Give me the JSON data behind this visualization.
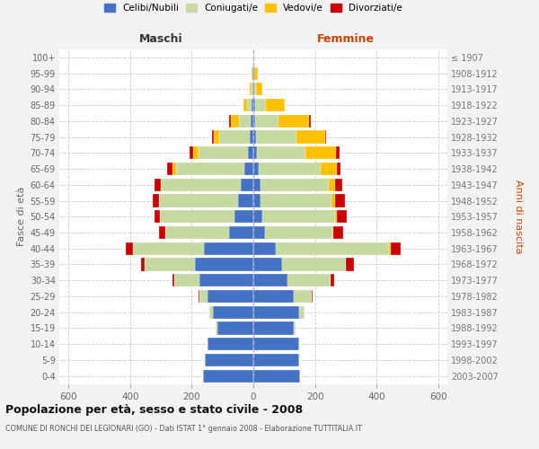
{
  "age_groups": [
    "0-4",
    "5-9",
    "10-14",
    "15-19",
    "20-24",
    "25-29",
    "30-34",
    "35-39",
    "40-44",
    "45-49",
    "50-54",
    "55-59",
    "60-64",
    "65-69",
    "70-74",
    "75-79",
    "80-84",
    "85-89",
    "90-94",
    "95-99",
    "100+"
  ],
  "birth_years": [
    "2003-2007",
    "1998-2002",
    "1993-1997",
    "1988-1992",
    "1983-1987",
    "1978-1982",
    "1973-1977",
    "1968-1972",
    "1963-1967",
    "1958-1962",
    "1953-1957",
    "1948-1952",
    "1943-1947",
    "1938-1942",
    "1933-1937",
    "1928-1932",
    "1923-1927",
    "1918-1922",
    "1913-1917",
    "1908-1912",
    "≤ 1907"
  ],
  "colors": {
    "celibe": "#4472c4",
    "coniugato": "#c5d9a0",
    "vedovo": "#ffc000",
    "divorziato": "#cc0000"
  },
  "maschi": {
    "celibe": [
      162,
      158,
      148,
      118,
      132,
      148,
      175,
      190,
      160,
      80,
      60,
      50,
      42,
      30,
      18,
      12,
      8,
      5,
      3,
      2,
      1
    ],
    "coniugato": [
      0,
      0,
      0,
      5,
      12,
      28,
      82,
      162,
      232,
      205,
      242,
      255,
      258,
      222,
      160,
      98,
      38,
      15,
      3,
      1,
      0
    ],
    "vedovo": [
      0,
      0,
      0,
      0,
      0,
      0,
      0,
      0,
      0,
      0,
      0,
      0,
      0,
      10,
      18,
      18,
      28,
      12,
      6,
      2,
      0
    ],
    "divorziato": [
      0,
      0,
      0,
      0,
      0,
      2,
      6,
      12,
      22,
      22,
      18,
      22,
      22,
      18,
      10,
      5,
      5,
      0,
      0,
      0,
      0
    ]
  },
  "femmine": {
    "celibe": [
      152,
      148,
      148,
      132,
      148,
      132,
      112,
      92,
      72,
      38,
      28,
      22,
      22,
      18,
      12,
      8,
      5,
      5,
      3,
      2,
      1
    ],
    "coniugato": [
      0,
      0,
      0,
      5,
      18,
      58,
      138,
      208,
      368,
      218,
      238,
      232,
      222,
      202,
      158,
      132,
      78,
      35,
      5,
      2,
      0
    ],
    "vedovo": [
      0,
      0,
      0,
      0,
      0,
      0,
      0,
      0,
      5,
      5,
      5,
      12,
      22,
      52,
      98,
      92,
      98,
      62,
      22,
      10,
      2
    ],
    "divorziato": [
      0,
      0,
      0,
      0,
      0,
      2,
      12,
      28,
      32,
      32,
      32,
      32,
      22,
      12,
      12,
      5,
      5,
      0,
      0,
      0,
      0
    ]
  },
  "xlim": 630,
  "xticks": [
    -600,
    -400,
    -200,
    0,
    200,
    400,
    600
  ],
  "xtick_labels": [
    "600",
    "400",
    "200",
    "0",
    "200",
    "400",
    "600"
  ],
  "title": "Popolazione per età, sesso e stato civile - 2008",
  "subtitle": "COMUNE DI RONCHI DEI LEGIONARI (GO) - Dati ISTAT 1° gennaio 2008 - Elaborazione TUTTITALIA.IT",
  "ylabel_left": "Fasce di età",
  "ylabel_right": "Anni di nascita",
  "header_left": "Maschi",
  "header_right": "Femmine",
  "bg_color": "#f2f2f2",
  "plot_bg_color": "#ffffff",
  "grid_color": "#cccccc",
  "center_line_color": "#aaaacc"
}
